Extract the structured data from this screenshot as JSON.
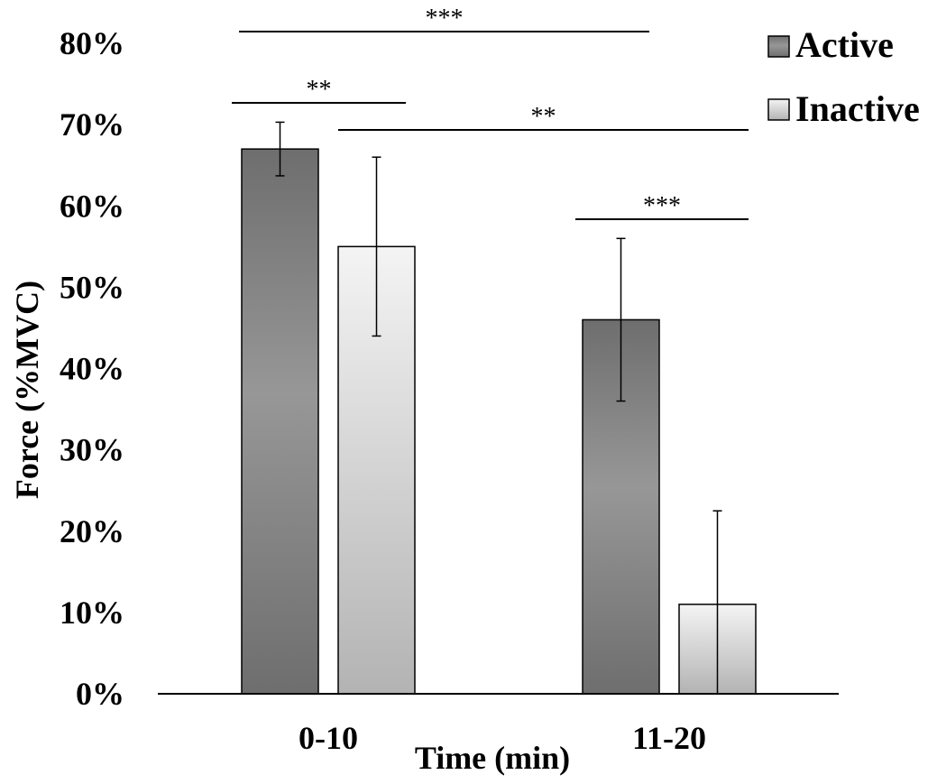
{
  "chart_data": {
    "type": "bar",
    "title": "",
    "xlabel": "Time (min)",
    "ylabel": "Force (%MVC)",
    "categories": [
      "0-10",
      "11-20"
    ],
    "ylim": [
      0,
      80
    ],
    "yticks": [
      "0%",
      "10%",
      "20%",
      "30%",
      "40%",
      "50%",
      "60%",
      "70%",
      "80%"
    ],
    "series": [
      {
        "name": "Active",
        "values": [
          67,
          46
        ],
        "errors": [
          3.3,
          10
        ],
        "color_top": "#6e6e6e",
        "color_mid": "#979797"
      },
      {
        "name": "Inactive",
        "values": [
          55,
          11
        ],
        "errors": [
          11,
          11.5
        ],
        "color_top": "#f2f2f2",
        "color_mid": "#b5b5b5"
      }
    ],
    "legend_position": "top-right",
    "significance": [
      {
        "label": "***",
        "from": "Active 0-10",
        "to": "Active 11-20"
      },
      {
        "label": "**",
        "from": "Active 0-10",
        "to": "Inactive 0-10"
      },
      {
        "label": "**",
        "from": "Inactive 0-10",
        "to": "Inactive 11-20"
      },
      {
        "label": "***",
        "from": "Active 11-20",
        "to": "Inactive 11-20"
      }
    ]
  }
}
